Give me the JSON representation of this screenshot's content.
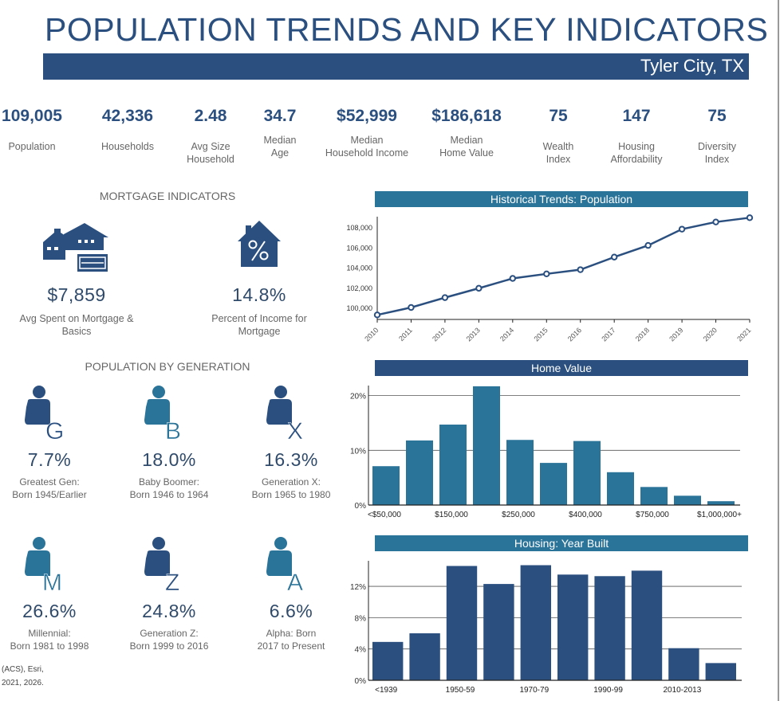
{
  "header": {
    "title": "POPULATION TRENDS AND KEY INDICATORS",
    "location": "Tyler City, TX"
  },
  "kpis": [
    {
      "value": "109,005",
      "label": "Population"
    },
    {
      "value": "42,336",
      "label": "Households"
    },
    {
      "value": "2.48",
      "label": "Avg Size\nHousehold"
    },
    {
      "value": "34.7",
      "label": "Median\nAge"
    },
    {
      "value": "$52,999",
      "label": "Median\nHousehold Income"
    },
    {
      "value": "$186,618",
      "label": "Median\nHome Value"
    },
    {
      "value": "75",
      "label": "Wealth\nIndex"
    },
    {
      "value": "147",
      "label": "Housing\nAffordability"
    },
    {
      "value": "75",
      "label": "Diversity\nIndex"
    }
  ],
  "mortgage": {
    "title": "MORTGAGE INDICATORS",
    "items": [
      {
        "value": "$7,859",
        "label": "Avg Spent on Mortgage &\nBasics",
        "icon": "houses-check-icon"
      },
      {
        "value": "14.8%",
        "label": "Percent of Income for\nMortgage",
        "icon": "house-percent-icon"
      }
    ]
  },
  "generation": {
    "title": "POPULATION BY GENERATION",
    "items": [
      {
        "letter": "G",
        "value": "7.7%",
        "label": "Greatest Gen:\nBorn 1945/Earlier",
        "color": "#2b5080"
      },
      {
        "letter": "B",
        "value": "18.0%",
        "label": "Baby Boomer:\nBorn 1946 to 1964",
        "color": "#2a7399"
      },
      {
        "letter": "X",
        "value": "16.3%",
        "label": "Generation X:\nBorn 1965 to 1980",
        "color": "#2b5080"
      },
      {
        "letter": "M",
        "value": "26.6%",
        "label": "Millennial:\nBorn 1981 to 1998",
        "color": "#2a7399"
      },
      {
        "letter": "Z",
        "value": "24.8%",
        "label": "Generation Z:\nBorn 1999 to 2016",
        "color": "#2b5080"
      },
      {
        "letter": "A",
        "value": "6.6%",
        "label": "Alpha:  Born\n2017 to Present",
        "color": "#2a7399"
      }
    ]
  },
  "footer": {
    "line1": "(ACS), Esri,",
    "line2": "2021, 2026."
  },
  "colors": {
    "navy": "#2b5080",
    "teal": "#2a7399"
  },
  "chart_data": [
    {
      "type": "line",
      "title": "Historical Trends: Population",
      "x": [
        "2010",
        "2011",
        "2012",
        "2013",
        "2014",
        "2015",
        "2016",
        "2017",
        "2018",
        "2019",
        "2020",
        "2021"
      ],
      "values": [
        99340,
        100080,
        101060,
        101990,
        102970,
        103420,
        103840,
        105090,
        106250,
        107870,
        108580,
        109005
      ],
      "yticks": [
        "100,000",
        "102,000",
        "104,000",
        "106,000",
        "108,000"
      ],
      "ylim": [
        99000,
        109200
      ],
      "color": "#2b5080",
      "grid": false
    },
    {
      "type": "bar",
      "title": "Home Value",
      "categories": [
        "<$50,000",
        "",
        "$150,000",
        "",
        "$250,000",
        "",
        "$400,000",
        "",
        "$750,000",
        "",
        "$1,000,000+"
      ],
      "values": [
        7.1,
        11.8,
        14.7,
        21.7,
        11.9,
        7.7,
        11.7,
        6.0,
        3.3,
        1.7,
        0.7
      ],
      "yticks": [
        "0%",
        "10%",
        "20%"
      ],
      "ylim": [
        0,
        22
      ],
      "color": "#2a7399",
      "grid": true
    },
    {
      "type": "bar",
      "title": "Housing: Year Built",
      "categories": [
        "<1939",
        "",
        "1950-59",
        "",
        "1970-79",
        "",
        "1990-99",
        "",
        "2010-2013",
        ""
      ],
      "values": [
        4.9,
        6.0,
        14.6,
        12.3,
        14.7,
        13.5,
        13.3,
        14.0,
        4.1,
        2.2
      ],
      "yticks": [
        "0%",
        "4%",
        "8%",
        "12%"
      ],
      "ylim": [
        0,
        15
      ],
      "color": "#2b5080",
      "grid": true
    }
  ]
}
